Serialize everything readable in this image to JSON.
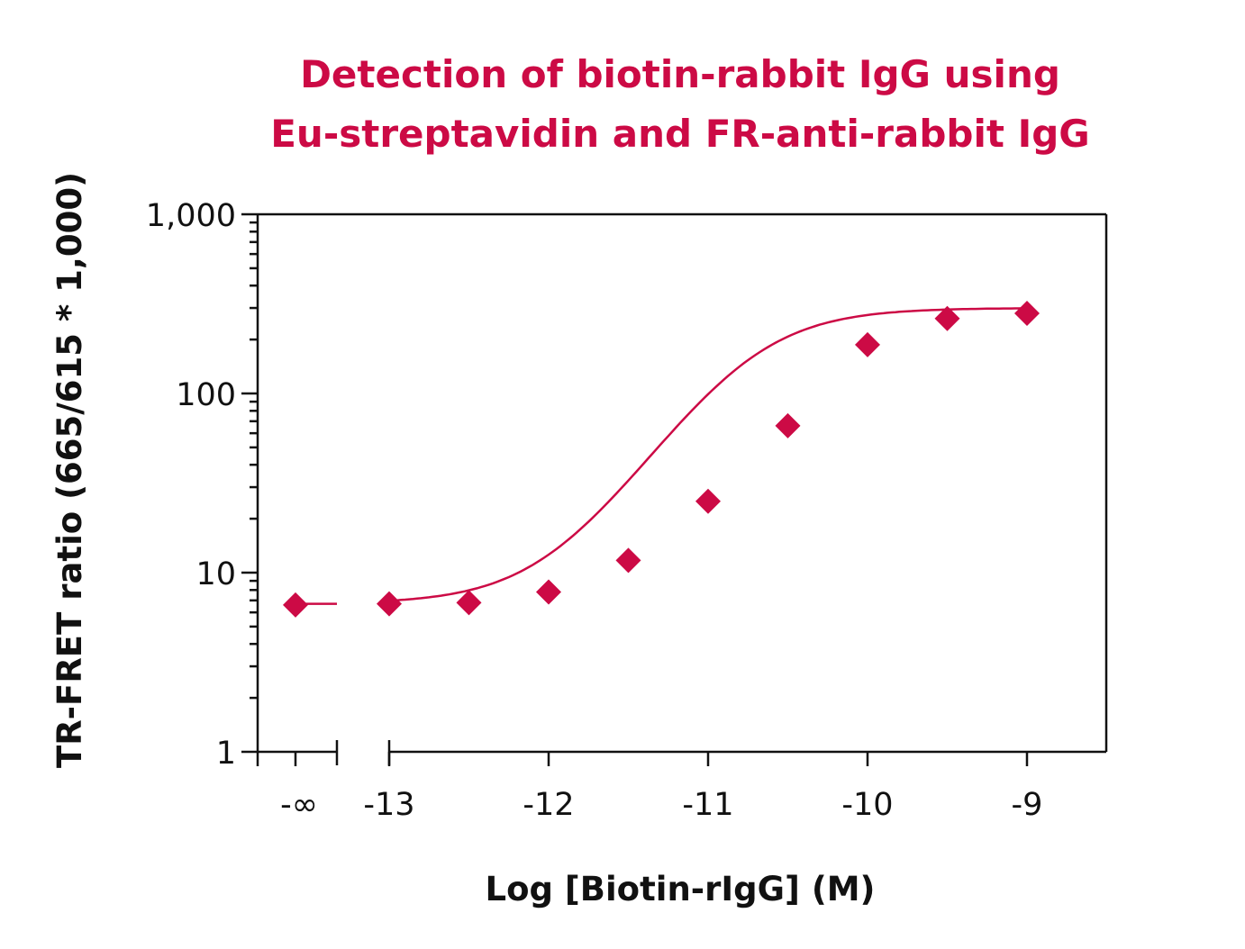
{
  "chart_data": {
    "type": "scatter",
    "title_lines": [
      "Detection of biotin-rabbit IgG using",
      "Eu-streptavidin and FR-anti-rabbit IgG"
    ],
    "xlabel": "Log [Biotin-rIgG] (M)",
    "ylabel": "TR-FRET ratio (665/615 * 1,000)",
    "yscale": "log",
    "ylim": [
      1,
      1000
    ],
    "xlim": [
      -13.9,
      -8.5
    ],
    "x_axis_break": "between -∞ and -13",
    "y_ticks": [
      {
        "value": 1,
        "label": "1"
      },
      {
        "value": 10,
        "label": "10"
      },
      {
        "value": 100,
        "label": "100"
      },
      {
        "value": 1000,
        "label": "1,000"
      }
    ],
    "x_ticks": [
      {
        "value": "-inf",
        "label": "-∞"
      },
      {
        "value": -13,
        "label": "-13"
      },
      {
        "value": -12,
        "label": "-12"
      },
      {
        "value": -11,
        "label": "-11"
      },
      {
        "value": -10,
        "label": "-10"
      },
      {
        "value": -9,
        "label": "-9"
      }
    ],
    "points": [
      {
        "x": "-inf",
        "y": 6.6
      },
      {
        "x": -13,
        "y": 6.7
      },
      {
        "x": -12.5,
        "y": 6.8
      },
      {
        "x": -12,
        "y": 7.8
      },
      {
        "x": -11.5,
        "y": 11.7
      },
      {
        "x": -11,
        "y": 25
      },
      {
        "x": -10.5,
        "y": 66
      },
      {
        "x": -10,
        "y": 187
      },
      {
        "x": -9.5,
        "y": 262
      },
      {
        "x": -9,
        "y": 280
      }
    ],
    "fit": {
      "model": "4PL",
      "bottom": 6.7,
      "top": 300,
      "log_ec50": -10.75,
      "hill": 1.35
    },
    "series_color": "#cc0a45",
    "marker": "diamond",
    "grid": false,
    "legend": "none"
  }
}
